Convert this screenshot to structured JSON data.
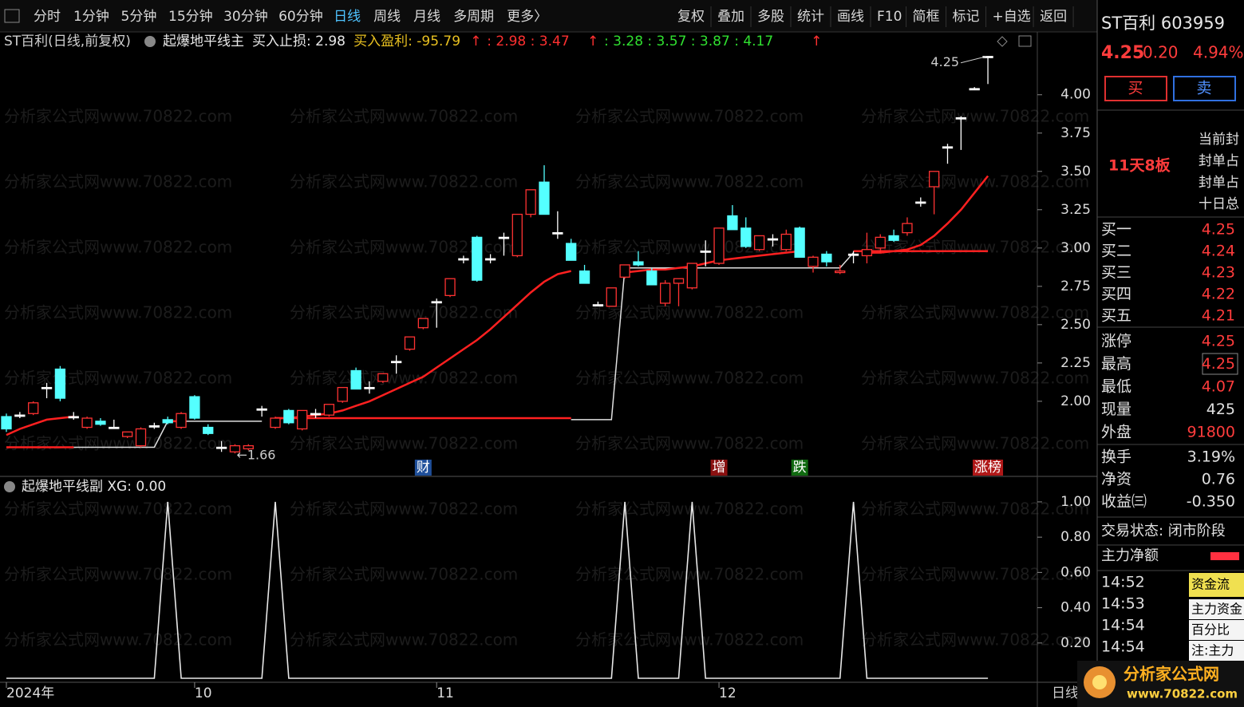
{
  "toolbar": {
    "left": [
      "分时",
      "1分钟",
      "5分钟",
      "15分钟",
      "30分钟",
      "60分钟",
      "日线",
      "周线",
      "月线",
      "多周期",
      "更多〉"
    ],
    "active": "日线",
    "right": [
      "复权",
      "叠加",
      "多股",
      "统计",
      "画线",
      "F10",
      "简框",
      "标记",
      "+自选",
      "返回"
    ]
  },
  "chart_data": [
    {
      "type": "candlestick",
      "title": "ST百利(日线,前复权)",
      "indicator": "起爆地平线主",
      "legend_items": [
        {
          "text": "买入止损: 2.98",
          "color": "#e8e8e8"
        },
        {
          "text": "买入盈利: -95.79",
          "color": "#e8c020"
        },
        {
          "text": "↑",
          "color": "#ff3030"
        },
        {
          "text": ": 2.98 : 3.47",
          "color": "#ff3030"
        },
        {
          "text": "↑",
          "color": "#ff3030"
        },
        {
          "text": ": 3.28 : 3.57 : 3.87 : 4.17",
          "color": "#30e030"
        },
        {
          "text": "↑",
          "color": "#ff3030"
        }
      ],
      "categories": [
        "2024年",
        null,
        null,
        null,
        null,
        null,
        null,
        null,
        null,
        null,
        null,
        null,
        null,
        null,
        "10",
        null,
        null,
        null,
        null,
        null,
        null,
        null,
        null,
        null,
        null,
        null,
        null,
        null,
        null,
        null,
        null,
        null,
        "11",
        null,
        null,
        null,
        null,
        null,
        null,
        null,
        null,
        null,
        null,
        null,
        null,
        null,
        null,
        null,
        null,
        null,
        null,
        null,
        null,
        "12",
        null,
        null,
        null,
        null,
        null,
        null,
        null,
        null,
        null,
        null,
        null,
        null,
        null,
        null,
        null,
        null,
        null,
        null,
        null,
        null
      ],
      "ohlc": [
        [
          1.9,
          1.92,
          1.8,
          1.82
        ],
        [
          1.91,
          1.93,
          1.89,
          1.91
        ],
        [
          1.92,
          2.0,
          1.91,
          1.99
        ],
        [
          2.09,
          2.12,
          2.02,
          2.09
        ],
        [
          2.21,
          2.23,
          2.0,
          2.02
        ],
        [
          1.9,
          1.93,
          1.88,
          1.9
        ],
        [
          1.83,
          1.9,
          1.82,
          1.89
        ],
        [
          1.87,
          1.89,
          1.84,
          1.85
        ],
        [
          1.83,
          1.88,
          1.82,
          1.83
        ],
        [
          1.77,
          1.8,
          1.76,
          1.8
        ],
        [
          1.71,
          1.83,
          1.7,
          1.82
        ],
        [
          1.84,
          1.86,
          1.82,
          1.84
        ],
        [
          1.88,
          1.9,
          1.85,
          1.86
        ],
        [
          1.83,
          1.93,
          1.82,
          1.92
        ],
        [
          2.03,
          2.04,
          1.88,
          1.89
        ],
        [
          1.83,
          1.85,
          1.78,
          1.79
        ],
        [
          1.7,
          1.74,
          1.67,
          1.7
        ],
        [
          1.67,
          1.72,
          1.66,
          1.71
        ],
        [
          1.69,
          1.72,
          1.68,
          1.71
        ],
        [
          1.95,
          1.97,
          1.9,
          1.95
        ],
        [
          1.83,
          1.9,
          1.82,
          1.89
        ],
        [
          1.94,
          1.95,
          1.85,
          1.86
        ],
        [
          1.82,
          1.94,
          1.81,
          1.94
        ],
        [
          1.92,
          1.95,
          1.89,
          1.92
        ],
        [
          1.91,
          1.98,
          1.9,
          1.98
        ],
        [
          2.0,
          2.09,
          1.99,
          2.09
        ],
        [
          2.2,
          2.22,
          2.08,
          2.08
        ],
        [
          2.09,
          2.13,
          2.05,
          2.09
        ],
        [
          2.13,
          2.18,
          2.12,
          2.18
        ],
        [
          2.26,
          2.3,
          2.18,
          2.26
        ],
        [
          2.34,
          2.42,
          2.33,
          2.42
        ],
        [
          2.48,
          2.54,
          2.47,
          2.54
        ],
        [
          2.65,
          2.67,
          2.48,
          2.65
        ],
        [
          2.69,
          2.8,
          2.68,
          2.8
        ],
        [
          2.93,
          2.95,
          2.9,
          2.93
        ],
        [
          3.07,
          3.08,
          2.78,
          2.79
        ],
        [
          2.93,
          2.96,
          2.9,
          2.93
        ],
        [
          3.07,
          3.1,
          2.95,
          3.07
        ],
        [
          2.95,
          3.22,
          2.94,
          3.22
        ],
        [
          3.22,
          3.38,
          3.2,
          3.38
        ],
        [
          3.43,
          3.54,
          3.22,
          3.22
        ],
        [
          3.1,
          3.24,
          3.06,
          3.1
        ],
        [
          3.03,
          3.06,
          2.92,
          2.92
        ],
        [
          2.85,
          2.89,
          2.77,
          2.77
        ],
        [
          2.63,
          2.65,
          2.62,
          2.63
        ],
        [
          2.62,
          2.74,
          2.62,
          2.74
        ],
        [
          2.81,
          2.89,
          2.8,
          2.89
        ],
        [
          2.91,
          2.98,
          2.88,
          2.89
        ],
        [
          2.85,
          2.87,
          2.76,
          2.76
        ],
        [
          2.64,
          2.79,
          2.62,
          2.77
        ],
        [
          2.77,
          2.8,
          2.62,
          2.8
        ],
        [
          2.74,
          2.9,
          2.73,
          2.9
        ],
        [
          2.98,
          3.05,
          2.88,
          2.98
        ],
        [
          2.9,
          3.13,
          2.89,
          3.13
        ],
        [
          3.21,
          3.28,
          3.12,
          3.12
        ],
        [
          3.13,
          3.2,
          3.0,
          3.01
        ],
        [
          2.99,
          3.08,
          2.98,
          3.08
        ],
        [
          3.06,
          3.09,
          3.01,
          3.06
        ],
        [
          2.99,
          3.12,
          2.98,
          3.09
        ],
        [
          3.13,
          3.14,
          2.94,
          2.94
        ],
        [
          2.88,
          2.95,
          2.84,
          2.94
        ],
        [
          2.96,
          2.98,
          2.88,
          2.91
        ],
        [
          2.84,
          2.89,
          2.83,
          2.85
        ],
        [
          2.96,
          2.98,
          2.9,
          2.96
        ],
        [
          2.95,
          3.1,
          2.9,
          2.99
        ],
        [
          3.0,
          3.09,
          2.97,
          3.07
        ],
        [
          3.08,
          3.12,
          3.04,
          3.05
        ],
        [
          3.1,
          3.2,
          3.08,
          3.16
        ],
        [
          3.3,
          3.33,
          3.27,
          3.3
        ],
        [
          3.4,
          3.5,
          3.22,
          3.5
        ],
        [
          3.66,
          3.68,
          3.55,
          3.66
        ],
        [
          3.85,
          3.86,
          3.64,
          3.85
        ],
        [
          4.04,
          4.05,
          4.03,
          4.04
        ],
        [
          4.25,
          4.25,
          4.07,
          4.25
        ]
      ],
      "up_color": "#ff3232",
      "down_color": "#54ffff",
      "flat_color": "#ffffff",
      "series": [
        {
          "color": "#ff2020",
          "values": [
            1.78,
            1.82,
            1.85,
            1.88,
            1.89,
            1.9,
            null,
            null,
            null,
            null,
            null,
            null,
            1.87,
            1.87,
            null,
            null,
            null,
            null,
            null,
            null,
            1.89,
            1.89,
            1.9,
            1.91,
            1.92,
            1.94,
            1.97,
            2.0,
            2.04,
            2.08,
            2.12,
            2.16,
            2.22,
            2.28,
            2.34,
            2.4,
            2.47,
            2.55,
            2.63,
            2.71,
            2.78,
            2.83,
            2.85,
            null,
            null,
            null,
            2.84,
            2.85,
            2.86,
            2.86,
            2.87,
            2.88,
            2.9,
            2.92,
            2.93,
            2.94,
            2.95,
            2.96,
            2.97,
            2.98,
            null,
            null,
            null,
            null,
            2.97,
            2.97,
            2.98,
            2.99,
            3.02,
            3.08,
            3.16,
            3.25,
            3.36,
            3.47
          ]
        },
        {
          "color": "#e0e0e0",
          "values": [
            null,
            null,
            null,
            null,
            null,
            1.7,
            1.7,
            1.7,
            1.7,
            1.7,
            1.7,
            1.7,
            1.87,
            1.87,
            1.87,
            1.87,
            1.87,
            1.87,
            1.87,
            1.87,
            null,
            null,
            null,
            null,
            null,
            null,
            null,
            null,
            null,
            null,
            null,
            null,
            null,
            null,
            null,
            null,
            null,
            null,
            null,
            null,
            null,
            null,
            1.88,
            1.88,
            1.88,
            1.88,
            2.87,
            2.87,
            2.87,
            2.87,
            2.87,
            2.87,
            2.87,
            2.87,
            2.87,
            2.87,
            2.87,
            2.87,
            2.87,
            2.87,
            2.87,
            2.87,
            2.87,
            2.97,
            null,
            null,
            null,
            null,
            null,
            null,
            null,
            null,
            null,
            null
          ]
        },
        {
          "color": "#ff2020",
          "values": [
            1.7,
            1.7,
            1.7,
            1.7,
            1.7,
            1.7,
            null,
            null,
            null,
            null,
            null,
            null,
            null,
            null,
            null,
            null,
            null,
            null,
            null,
            null,
            1.89,
            1.89,
            1.89,
            1.89,
            1.89,
            1.89,
            1.89,
            1.89,
            1.89,
            1.89,
            1.89,
            1.89,
            1.89,
            1.89,
            1.89,
            1.89,
            1.89,
            1.89,
            1.89,
            1.89,
            1.89,
            1.89,
            1.89,
            null,
            null,
            null,
            null,
            null,
            null,
            null,
            null,
            null,
            null,
            null,
            null,
            null,
            null,
            null,
            null,
            null,
            null,
            null,
            null,
            2.98,
            2.98,
            2.98,
            2.98,
            2.98,
            2.98,
            2.98,
            2.98,
            2.98,
            2.98,
            2.98
          ]
        }
      ],
      "ylim": [
        1.51,
        4.41
      ],
      "yticks": [
        {
          "value": 2,
          "label": "2.00"
        },
        {
          "value": 2.25,
          "label": "2.25"
        },
        {
          "value": 2.5,
          "label": "2.50"
        },
        {
          "value": 2.75,
          "label": "2.75"
        },
        {
          "value": 3,
          "label": "3.00"
        },
        {
          "value": 3.25,
          "label": "3.25"
        },
        {
          "value": 3.5,
          "label": "3.50"
        },
        {
          "value": 3.75,
          "label": "3.75"
        },
        {
          "value": 4,
          "label": "4.00"
        }
      ],
      "annotations": [
        {
          "index": 31,
          "text": "财",
          "color": "#1f4f9a"
        },
        {
          "index": 53,
          "text": "增",
          "color": "#8a1010"
        },
        {
          "index": 59,
          "text": "跌",
          "color": "#106a10"
        },
        {
          "index": 73,
          "text": "涨榜",
          "color": "#b01818"
        }
      ],
      "price_marks": [
        {
          "index": 73,
          "label": "4.25"
        },
        {
          "index": 17,
          "label": "←1.66"
        }
      ],
      "x_axis_label": "日线"
    },
    {
      "type": "line",
      "title": "起爆地平线副 XG: 0.00",
      "color": "#e8e8e8",
      "values": [
        0,
        0,
        0,
        0,
        0,
        0,
        0,
        0,
        0,
        0,
        0,
        0,
        1,
        0,
        0,
        0,
        0,
        0,
        0,
        0,
        1,
        0,
        0,
        0,
        0,
        0,
        0,
        0,
        0,
        0,
        0,
        0,
        0,
        0,
        0,
        0,
        0,
        0,
        0,
        0,
        0,
        0,
        0,
        0,
        0,
        0,
        1,
        0,
        0,
        0,
        0,
        1,
        0,
        0,
        0,
        0,
        0,
        0,
        0,
        0,
        0,
        0,
        0,
        1,
        0,
        0,
        0,
        0,
        0,
        0,
        0,
        0,
        0,
        0
      ],
      "ylim": [
        0,
        1.14
      ],
      "yticks": [
        {
          "value": 0.2,
          "label": "0.20"
        },
        {
          "value": 0.4,
          "label": "0.40"
        },
        {
          "value": 0.6,
          "label": "0.60"
        },
        {
          "value": 0.8,
          "label": "0.80"
        },
        {
          "value": 1,
          "label": "1.00"
        }
      ]
    }
  ],
  "sidebar": {
    "name": "ST百利 603959",
    "price": "4.25",
    "change": "0.20",
    "pct": "4.94%",
    "buttons": [
      "买",
      "卖"
    ],
    "badge": "11天8板",
    "notes": [
      "当前封",
      "封单占",
      "封单占",
      "十日总"
    ],
    "book": [
      [
        "买一",
        "4.25"
      ],
      [
        "买二",
        "4.24"
      ],
      [
        "买三",
        "4.23"
      ],
      [
        "买四",
        "4.22"
      ],
      [
        "买五",
        "4.21"
      ]
    ],
    "stats": [
      [
        "涨停",
        "4.25"
      ],
      [
        "最高",
        "4.25"
      ],
      [
        "最低",
        "4.07"
      ],
      [
        "现量",
        "425"
      ],
      [
        "外盘",
        "91800"
      ]
    ],
    "stats2": [
      [
        "换手",
        "3.19%"
      ],
      [
        "净资",
        "0.76"
      ],
      [
        "收益㈢",
        "-0.350"
      ]
    ],
    "status": "交易状态: 闭市阶段",
    "flow": "主力净额",
    "times": [
      "14:52",
      "14:53",
      "14:54",
      "14:54"
    ],
    "panel": [
      "资金流",
      "主力资金",
      "百分比",
      "注:主力"
    ]
  },
  "watermark": "分析家公式网www.70822.com",
  "logo": [
    "分析家公式网",
    "www.70822.com"
  ]
}
